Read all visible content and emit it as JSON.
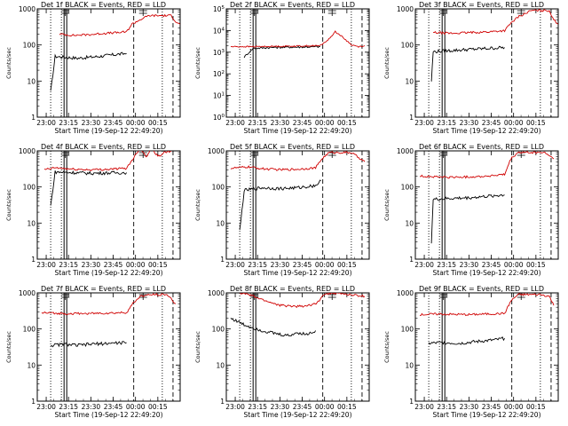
{
  "page": {
    "colors": {
      "events": "#000000",
      "lld": "#d00000",
      "axis": "#000000",
      "background": "#ffffff"
    }
  },
  "chart_data": [
    {
      "type": "line",
      "title": "Det 1f BLACK = Events, RED = LLD",
      "xlabel": "Start Time (19-Sep-12 22:49:20)",
      "ylabel": "Counts/sec",
      "yscale": "log",
      "ylim": [
        1,
        1000
      ],
      "xticks": [
        "23:00",
        "23:15",
        "23:30",
        "23:45",
        "00:00",
        "00:15"
      ],
      "ytick_labels": [
        "1",
        "10",
        "100",
        "1000"
      ],
      "grid": false,
      "legend": "title",
      "series": [
        {
          "name": "BLACK = Events",
          "values": [
            [
              23.05,
              5
            ],
            [
              23.1,
              48
            ],
            [
              23.2,
              46
            ],
            [
              23.35,
              43
            ],
            [
              23.5,
              46
            ],
            [
              23.65,
              50
            ],
            [
              23.8,
              55
            ],
            [
              23.9,
              58
            ]
          ]
        },
        {
          "name": "RED = LLD",
          "values": [
            [
              23.15,
              200
            ],
            [
              23.3,
              185
            ],
            [
              23.5,
              195
            ],
            [
              23.65,
              210
            ],
            [
              23.8,
              220
            ],
            [
              23.9,
              230
            ],
            [
              23.96,
              380
            ],
            [
              24.05,
              500
            ],
            [
              24.15,
              650
            ],
            [
              24.4,
              650
            ],
            [
              24.45,
              450
            ],
            [
              24.5,
              380
            ]
          ]
        }
      ]
    },
    {
      "type": "line",
      "title": "Det 2f BLACK = Events, RED = LLD",
      "xlabel": "Start Time (19-Sep-12 22:49:20)",
      "ylabel": "Counts/sec",
      "yscale": "log",
      "ylim": [
        1,
        100000
      ],
      "xticks": [
        "23:00",
        "23:15",
        "23:30",
        "23:45",
        "00:00",
        "00:15"
      ],
      "ytick_labels": [
        "10^0",
        "10^1",
        "10^2",
        "10^3",
        "10^4",
        "10^5"
      ],
      "grid": false,
      "legend": "title",
      "series": [
        {
          "name": "BLACK = Events",
          "values": [
            [
              23.1,
              600
            ],
            [
              23.2,
              1500
            ],
            [
              23.4,
              1650
            ],
            [
              23.6,
              1700
            ],
            [
              23.8,
              1750
            ],
            [
              23.95,
              1800
            ]
          ]
        },
        {
          "name": "RED = LLD",
          "values": [
            [
              22.95,
              1800
            ],
            [
              23.2,
              1800
            ],
            [
              23.4,
              1850
            ],
            [
              23.6,
              1900
            ],
            [
              23.8,
              1950
            ],
            [
              23.95,
              2000
            ],
            [
              24.05,
              4000
            ],
            [
              24.12,
              9000
            ],
            [
              24.2,
              5000
            ],
            [
              24.3,
              2200
            ],
            [
              24.38,
              1800
            ],
            [
              24.45,
              2000
            ]
          ]
        }
      ]
    },
    {
      "type": "line",
      "title": "Det 3f BLACK = Events, RED = LLD",
      "xlabel": "Start Time (19-Sep-12 22:49:20)",
      "ylabel": "Counts/sec",
      "yscale": "log",
      "ylim": [
        1,
        1000
      ],
      "xticks": [
        "23:00",
        "23:15",
        "23:30",
        "23:45",
        "00:00",
        "00:15"
      ],
      "ytick_labels": [
        "1",
        "10",
        "100",
        "1000"
      ],
      "grid": false,
      "legend": "title",
      "series": [
        {
          "name": "BLACK = Events",
          "values": [
            [
              23.08,
              10
            ],
            [
              23.1,
              65
            ],
            [
              23.3,
              70
            ],
            [
              23.5,
              75
            ],
            [
              23.7,
              80
            ],
            [
              23.9,
              85
            ]
          ]
        },
        {
          "name": "RED = LLD",
          "values": [
            [
              23.1,
              220
            ],
            [
              23.3,
              210
            ],
            [
              23.5,
              220
            ],
            [
              23.7,
              230
            ],
            [
              23.9,
              250
            ],
            [
              23.97,
              400
            ],
            [
              24.05,
              600
            ],
            [
              24.2,
              900
            ],
            [
              24.4,
              900
            ],
            [
              24.45,
              500
            ],
            [
              24.5,
              380
            ]
          ]
        }
      ]
    },
    {
      "type": "line",
      "title": "Det 4f BLACK = Events, RED = LLD",
      "xlabel": "Start Time (19-Sep-12 22:49:20)",
      "ylabel": "Counts/sec",
      "yscale": "log",
      "ylim": [
        1,
        1000
      ],
      "xticks": [
        "23:00",
        "23:15",
        "23:30",
        "23:45",
        "00:00",
        "00:15"
      ],
      "ytick_labels": [
        "1",
        "10",
        "100",
        "1000"
      ],
      "grid": false,
      "legend": "title",
      "series": [
        {
          "name": "BLACK = Events",
          "values": [
            [
              23.05,
              30
            ],
            [
              23.1,
              260
            ],
            [
              23.3,
              250
            ],
            [
              23.5,
              240
            ],
            [
              23.7,
              245
            ],
            [
              23.9,
              250
            ]
          ]
        },
        {
          "name": "RED = LLD",
          "values": [
            [
              22.98,
              300
            ],
            [
              23.1,
              340
            ],
            [
              23.3,
              310
            ],
            [
              23.5,
              300
            ],
            [
              23.7,
              310
            ],
            [
              23.9,
              330
            ],
            [
              23.97,
              600
            ],
            [
              24.05,
              1200
            ],
            [
              24.12,
              700
            ],
            [
              24.18,
              1200
            ],
            [
              24.25,
              700
            ],
            [
              24.32,
              900
            ],
            [
              24.4,
              1000
            ]
          ]
        }
      ]
    },
    {
      "type": "line",
      "title": "Det 5f BLACK = Events, RED = LLD",
      "xlabel": "Start Time (19-Sep-12 22:49:20)",
      "ylabel": "Counts/sec",
      "yscale": "log",
      "ylim": [
        1,
        1000
      ],
      "xticks": [
        "23:00",
        "23:15",
        "23:30",
        "23:45",
        "00:00",
        "00:15"
      ],
      "ytick_labels": [
        "1",
        "10",
        "100",
        "1000"
      ],
      "grid": false,
      "legend": "title",
      "series": [
        {
          "name": "BLACK = Events",
          "values": [
            [
              23.05,
              6
            ],
            [
              23.1,
              80
            ],
            [
              23.3,
              95
            ],
            [
              23.5,
              90
            ],
            [
              23.7,
              95
            ],
            [
              23.9,
              110
            ],
            [
              23.96,
              150
            ]
          ]
        },
        {
          "name": "RED = LLD",
          "values": [
            [
              22.95,
              330
            ],
            [
              23.15,
              360
            ],
            [
              23.3,
              320
            ],
            [
              23.5,
              300
            ],
            [
              23.7,
              310
            ],
            [
              23.9,
              340
            ],
            [
              23.97,
              600
            ],
            [
              24.05,
              900
            ],
            [
              24.15,
              900
            ],
            [
              24.3,
              900
            ],
            [
              24.45,
              500
            ]
          ]
        }
      ]
    },
    {
      "type": "line",
      "title": "Det 6f BLACK = Events, RED = LLD",
      "xlabel": "Start Time (19-Sep-12 22:49:20)",
      "ylabel": "Counts/sec",
      "yscale": "log",
      "ylim": [
        1,
        1000
      ],
      "xticks": [
        "23:00",
        "23:15",
        "23:30",
        "23:45",
        "00:00",
        "00:15"
      ],
      "ytick_labels": [
        "1",
        "10",
        "100",
        "1000"
      ],
      "grid": false,
      "legend": "title",
      "series": [
        {
          "name": "BLACK = Events",
          "values": [
            [
              23.08,
              3
            ],
            [
              23.1,
              45
            ],
            [
              23.3,
              48
            ],
            [
              23.5,
              50
            ],
            [
              23.7,
              55
            ],
            [
              23.9,
              60
            ]
          ]
        },
        {
          "name": "RED = LLD",
          "values": [
            [
              22.95,
              200
            ],
            [
              23.15,
              190
            ],
            [
              23.3,
              185
            ],
            [
              23.5,
              190
            ],
            [
              23.7,
              200
            ],
            [
              23.9,
              220
            ],
            [
              23.97,
              600
            ],
            [
              24.05,
              900
            ],
            [
              24.2,
              900
            ],
            [
              24.35,
              900
            ],
            [
              24.45,
              600
            ]
          ]
        }
      ]
    },
    {
      "type": "line",
      "title": "Det 7f BLACK = Events, RED = LLD",
      "xlabel": "Start Time (19-Sep-12 22:49:20)",
      "ylabel": "Counts/sec",
      "yscale": "log",
      "ylim": [
        1,
        1000
      ],
      "xticks": [
        "23:00",
        "23:15",
        "23:30",
        "23:45",
        "00:00",
        "00:15"
      ],
      "ytick_labels": [
        "1",
        "10",
        "100",
        "1000"
      ],
      "grid": false,
      "legend": "title",
      "series": [
        {
          "name": "BLACK = Events",
          "values": [
            [
              23.05,
              35
            ],
            [
              23.2,
              38
            ],
            [
              23.35,
              35
            ],
            [
              23.5,
              38
            ],
            [
              23.7,
              40
            ],
            [
              23.9,
              42
            ]
          ]
        },
        {
          "name": "RED = LLD",
          "values": [
            [
              22.95,
              280
            ],
            [
              23.15,
              270
            ],
            [
              23.3,
              265
            ],
            [
              23.5,
              270
            ],
            [
              23.7,
              275
            ],
            [
              23.9,
              285
            ],
            [
              23.97,
              500
            ],
            [
              24.05,
              800
            ],
            [
              24.2,
              900
            ],
            [
              24.35,
              900
            ],
            [
              24.45,
              500
            ]
          ]
        }
      ]
    },
    {
      "type": "line",
      "title": "Det 8f BLACK = Events, RED = LLD",
      "xlabel": "Start Time (19-Sep-12 22:49:20)",
      "ylabel": "Counts/sec",
      "yscale": "log",
      "ylim": [
        1,
        1000
      ],
      "xticks": [
        "23:00",
        "23:15",
        "23:30",
        "23:45",
        "00:00",
        "00:15"
      ],
      "ytick_labels": [
        "1",
        "10",
        "100",
        "1000"
      ],
      "grid": false,
      "legend": "title",
      "series": [
        {
          "name": "BLACK = Events",
          "values": [
            [
              22.95,
              200
            ],
            [
              23.1,
              130
            ],
            [
              23.3,
              90
            ],
            [
              23.5,
              70
            ],
            [
              23.6,
              65
            ],
            [
              23.7,
              80
            ],
            [
              23.8,
              70
            ],
            [
              23.9,
              90
            ]
          ]
        },
        {
          "name": "RED = LLD",
          "values": [
            [
              23.05,
              1000
            ],
            [
              23.15,
              900
            ],
            [
              23.3,
              650
            ],
            [
              23.5,
              450
            ],
            [
              23.7,
              420
            ],
            [
              23.85,
              450
            ],
            [
              23.93,
              560
            ],
            [
              23.98,
              900
            ],
            [
              24.1,
              1000
            ],
            [
              24.45,
              800
            ]
          ]
        }
      ]
    },
    {
      "type": "line",
      "title": "Det 9f BLACK = Events, RED = LLD",
      "xlabel": "Start Time (19-Sep-12 22:49:20)",
      "ylabel": "Counts/sec",
      "yscale": "log",
      "ylim": [
        1,
        1000
      ],
      "xticks": [
        "23:00",
        "23:15",
        "23:30",
        "23:45",
        "00:00",
        "00:15"
      ],
      "ytick_labels": [
        "1",
        "10",
        "100",
        "1000"
      ],
      "grid": false,
      "legend": "title",
      "series": [
        {
          "name": "BLACK = Events",
          "values": [
            [
              23.05,
              40
            ],
            [
              23.2,
              42
            ],
            [
              23.4,
              40
            ],
            [
              23.6,
              45
            ],
            [
              23.8,
              50
            ],
            [
              23.9,
              55
            ]
          ]
        },
        {
          "name": "RED = LLD",
          "values": [
            [
              22.95,
              250
            ],
            [
              23.15,
              260
            ],
            [
              23.3,
              255
            ],
            [
              23.5,
              250
            ],
            [
              23.7,
              260
            ],
            [
              23.9,
              270
            ],
            [
              23.97,
              600
            ],
            [
              24.05,
              900
            ],
            [
              24.2,
              900
            ],
            [
              24.3,
              900
            ],
            [
              24.4,
              800
            ],
            [
              24.45,
              450
            ]
          ]
        }
      ]
    }
  ]
}
